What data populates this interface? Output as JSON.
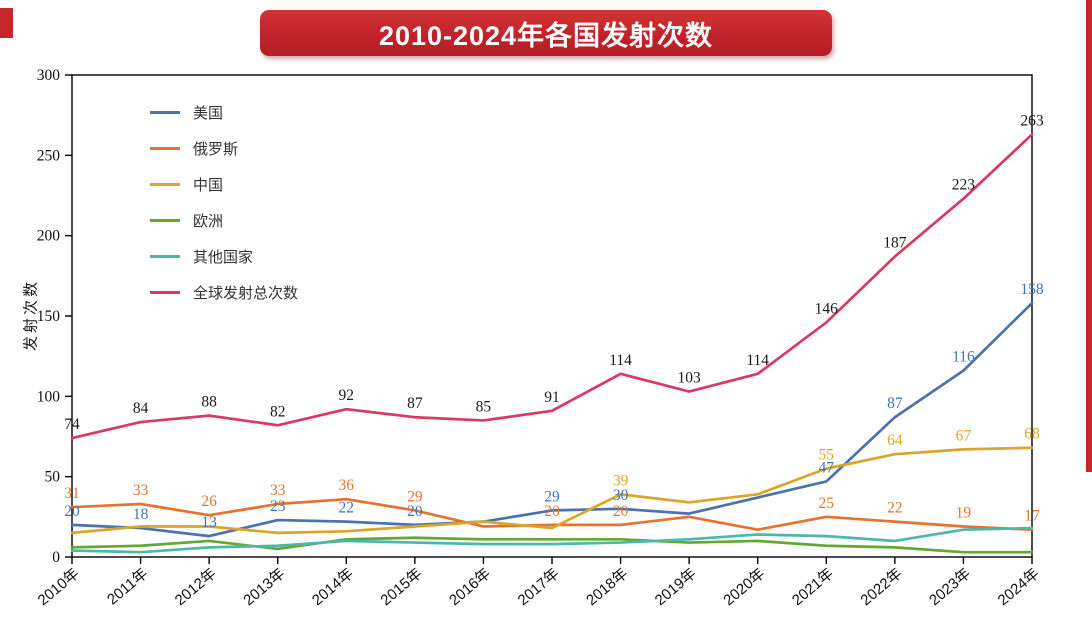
{
  "banner": {
    "title": "2010-2024年各国发射次数",
    "bg_color": "#c0232a",
    "text_color": "#ffffff"
  },
  "decor": {
    "accent_color": "#c5262c"
  },
  "chart_data": {
    "type": "line",
    "title": "2010-2024年各国发射次数",
    "xlabel": "",
    "ylabel": "发射次数",
    "ylim": [
      0,
      300
    ],
    "yticks": [
      0,
      50,
      100,
      150,
      200,
      250,
      300
    ],
    "grid": false,
    "legend_position": "upper-left",
    "categories": [
      "2010年",
      "2011年",
      "2012年",
      "2013年",
      "2014年",
      "2015年",
      "2016年",
      "2017年",
      "2018年",
      "2019年",
      "2020年",
      "2021年",
      "2022年",
      "2023年",
      "2024年"
    ],
    "series": [
      {
        "name": "美国",
        "color": "#4a72b0",
        "label_color": "#3f74bc",
        "values": [
          20,
          18,
          13,
          23,
          22,
          20,
          22,
          29,
          30,
          27,
          37,
          47,
          87,
          116,
          158
        ],
        "labels": [
          20,
          18,
          13,
          23,
          22,
          20,
          null,
          29,
          30,
          null,
          null,
          47,
          87,
          116,
          158
        ]
      },
      {
        "name": "俄罗斯",
        "color": "#e2742f",
        "label_color": "#e2742f",
        "values": [
          31,
          33,
          26,
          33,
          36,
          29,
          19,
          20,
          20,
          25,
          17,
          25,
          22,
          19,
          17
        ],
        "labels": [
          31,
          33,
          26,
          33,
          36,
          29,
          null,
          20,
          20,
          null,
          null,
          25,
          22,
          19,
          17
        ]
      },
      {
        "name": "中国",
        "color": "#d9a627",
        "label_color": "#d9a627",
        "values": [
          15,
          19,
          19,
          15,
          16,
          19,
          22,
          18,
          39,
          34,
          39,
          55,
          64,
          67,
          68
        ],
        "labels": [
          null,
          null,
          null,
          null,
          null,
          null,
          null,
          null,
          39,
          null,
          null,
          55,
          64,
          67,
          68
        ]
      },
      {
        "name": "欧洲",
        "color": "#62a833",
        "label_color": "#62a833",
        "values": [
          6,
          7,
          10,
          5,
          11,
          12,
          11,
          11,
          11,
          9,
          10,
          7,
          6,
          3,
          3
        ],
        "labels": [
          null,
          null,
          null,
          null,
          null,
          null,
          null,
          null,
          null,
          null,
          null,
          null,
          null,
          null,
          null
        ]
      },
      {
        "name": "其他国家",
        "color": "#4cb8ab",
        "label_color": "#4cb8ab",
        "values": [
          4,
          3,
          6,
          7,
          10,
          9,
          8,
          8,
          9,
          11,
          14,
          13,
          10,
          17,
          18
        ],
        "labels": [
          null,
          null,
          null,
          null,
          null,
          null,
          null,
          null,
          null,
          null,
          null,
          null,
          null,
          null,
          null
        ]
      },
      {
        "name": "全球发射总次数",
        "color": "#d93a63",
        "label_color": "#1a1a1a",
        "values": [
          74,
          84,
          88,
          82,
          92,
          87,
          85,
          91,
          114,
          103,
          114,
          146,
          187,
          223,
          263
        ],
        "labels": [
          74,
          84,
          88,
          82,
          92,
          87,
          85,
          91,
          114,
          103,
          114,
          146,
          187,
          223,
          263
        ]
      }
    ]
  }
}
